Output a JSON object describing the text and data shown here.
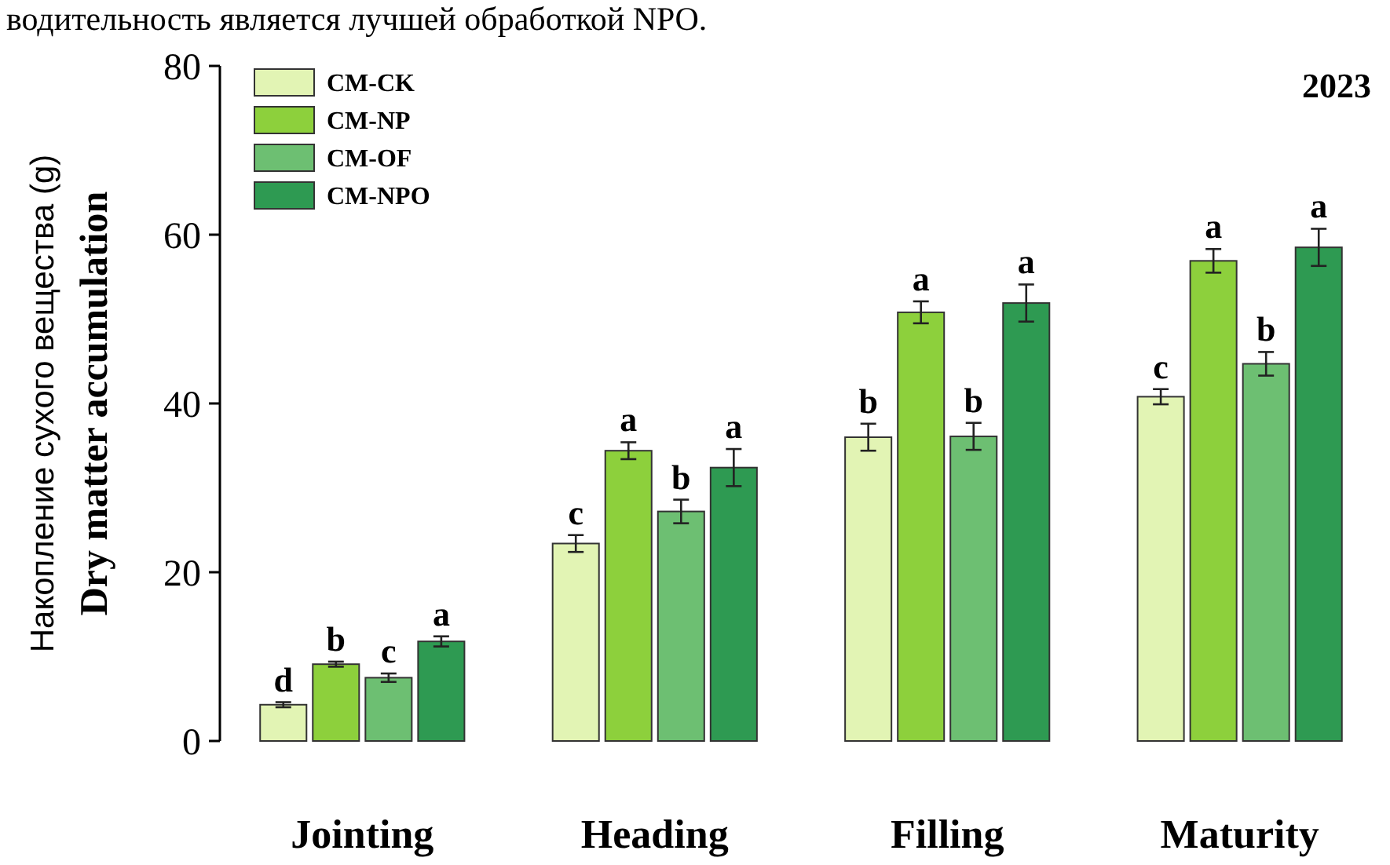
{
  "chart_data": {
    "type": "bar",
    "title": "2023",
    "ylabel": "Накопление сухого вещества (g)\nDry matter accumulation",
    "annotations": [
      "водительность является лучшей обработкой NPO."
    ],
    "categories": [
      "Jointing",
      "Heading",
      "Filling",
      "Maturity"
    ],
    "series": [
      {
        "name": "CM-CK",
        "color": "#e2f4b4",
        "values": [
          4.3,
          23.4,
          36,
          40.8
        ],
        "errors": [
          0.3,
          1,
          1.6,
          0.9
        ],
        "value_labels": [
          "d",
          "c",
          "b",
          "c"
        ]
      },
      {
        "name": "CM-NP",
        "color": "#8dd03c",
        "values": [
          9.1,
          34.4,
          50.8,
          56.9
        ],
        "errors": [
          0.3,
          1,
          1.3,
          1.4
        ],
        "value_labels": [
          "b",
          "a",
          "a",
          "a"
        ]
      },
      {
        "name": "CM-OF",
        "color": "#6dbf72",
        "values": [
          7.5,
          27.2,
          36.1,
          44.7
        ],
        "errors": [
          0.5,
          1.4,
          1.6,
          1.4
        ],
        "value_labels": [
          "c",
          "b",
          "b",
          "b"
        ]
      },
      {
        "name": "CM-NPO",
        "color": "#2e9a52",
        "values": [
          11.8,
          32.4,
          51.9,
          58.5
        ],
        "errors": [
          0.6,
          2.2,
          2.2,
          2.2
        ],
        "value_labels": [
          "a",
          "a",
          "a",
          "a"
        ]
      }
    ],
    "ylim": [
      0,
      80
    ],
    "yticks": [
      0,
      20,
      40,
      60,
      80
    ],
    "legend": "top left",
    "grid": false
  }
}
